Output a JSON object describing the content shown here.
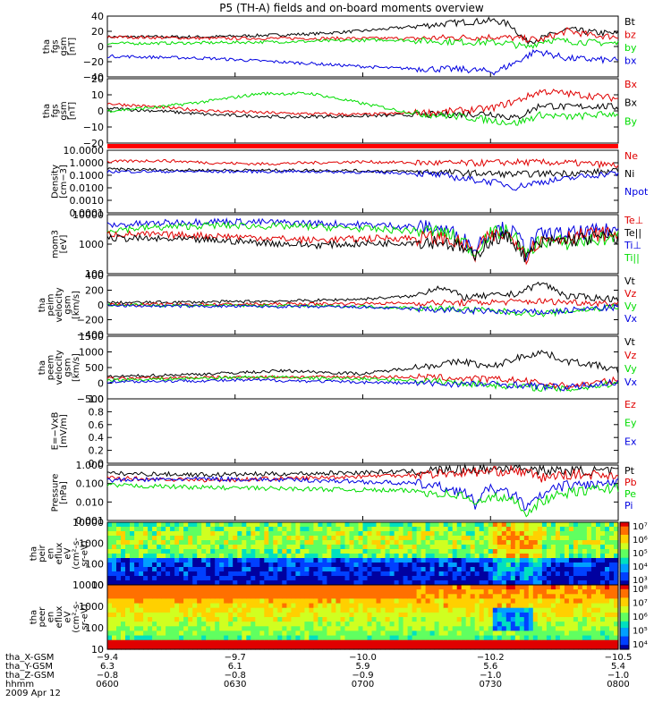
{
  "title": "P5 (TH-A) fields and on-board moments overview",
  "colors": {
    "black": "#000000",
    "red": "#e00000",
    "green": "#00dd00",
    "blue": "#0000e0",
    "flag": "#ff0000"
  },
  "chart_data": [
    {
      "type": "line",
      "ylabel": [
        "tha",
        "fgs",
        "gsm",
        "[nT]"
      ],
      "yticks": [
        "40",
        "20",
        "0",
        "−20",
        "−40"
      ],
      "ylim": [
        -40,
        42
      ],
      "legend": [
        {
          "label": "Bt",
          "color": "#000000"
        },
        {
          "label": "bz",
          "color": "#e00000"
        },
        {
          "label": "by",
          "color": "#00dd00"
        },
        {
          "label": "bx",
          "color": "#0000e0"
        }
      ],
      "series": [
        {
          "color": "#000000",
          "x": [
            0,
            0.2,
            0.4,
            0.5,
            0.6,
            0.7,
            0.76,
            0.79,
            0.82,
            0.85,
            0.9,
            0.95,
            1
          ],
          "y": [
            14,
            14,
            18,
            22,
            28,
            34,
            36,
            30,
            8,
            12,
            24,
            20,
            18
          ]
        },
        {
          "color": "#e00000",
          "x": [
            0,
            0.2,
            0.4,
            0.6,
            0.76,
            0.8,
            0.85,
            0.9,
            0.95,
            1
          ],
          "y": [
            14,
            12,
            12,
            12,
            14,
            12,
            10,
            22,
            16,
            14
          ]
        },
        {
          "color": "#00dd00",
          "x": [
            0,
            0.2,
            0.4,
            0.55,
            0.7,
            0.78,
            0.82,
            0.86,
            0.9,
            1
          ],
          "y": [
            5,
            6,
            8,
            10,
            7,
            6,
            0,
            10,
            8,
            5
          ]
        },
        {
          "color": "#0000e0",
          "x": [
            0,
            0.2,
            0.4,
            0.55,
            0.7,
            0.76,
            0.8,
            0.84,
            0.9,
            1
          ],
          "y": [
            -12,
            -15,
            -22,
            -28,
            -30,
            -33,
            -20,
            -5,
            -15,
            -18
          ]
        }
      ]
    },
    {
      "type": "line",
      "ylabel": [
        "tha",
        "fgs",
        "gsm",
        "[nT]"
      ],
      "yticks": [
        "20",
        "10",
        "0",
        "−10",
        "−20"
      ],
      "ylim": [
        -26,
        26
      ],
      "legend": [
        {
          "label": "Bx",
          "color": "#e00000"
        },
        {
          "label": "Bx",
          "color": "#000000"
        },
        {
          "label": "By",
          "color": "#00dd00"
        }
      ],
      "series": [
        {
          "color": "#000000",
          "x": [
            0,
            0.1,
            0.2,
            0.35,
            0.5,
            0.65,
            0.75,
            0.8,
            0.85,
            0.9,
            0.95,
            1
          ],
          "y": [
            2,
            0,
            -3,
            -5,
            -4,
            -3,
            -2,
            -6,
            5,
            3,
            4,
            3
          ]
        },
        {
          "color": "#e00000",
          "x": [
            0,
            0.1,
            0.2,
            0.35,
            0.5,
            0.65,
            0.75,
            0.8,
            0.85,
            0.9,
            0.95,
            1
          ],
          "y": [
            6,
            3,
            0,
            -2,
            -3,
            -1,
            2,
            8,
            16,
            14,
            12,
            10
          ]
        },
        {
          "color": "#00dd00",
          "x": [
            0,
            0.1,
            0.2,
            0.3,
            0.4,
            0.5,
            0.6,
            0.7,
            0.8,
            0.85,
            0.9,
            1
          ],
          "y": [
            0,
            3,
            8,
            14,
            14,
            6,
            -2,
            -5,
            -10,
            -3,
            -5,
            -2
          ]
        }
      ]
    },
    {
      "type": "line",
      "scale": "log",
      "ylabel": [
        "Density",
        "[cm−3]"
      ],
      "yticks": [
        "10.0000",
        "1.0000",
        "0.1000",
        "0.0100",
        "0.0010",
        "0.0001"
      ],
      "ylim": [
        0.0001,
        10
      ],
      "legend": [
        {
          "label": "Ne",
          "color": "#e00000"
        },
        {
          "label": "Ni",
          "color": "#000000"
        },
        {
          "label": "Npot",
          "color": "#0000e0"
        }
      ],
      "series": [
        {
          "color": "#e00000",
          "x": [
            0,
            0.1,
            0.2,
            0.3,
            0.4,
            0.5,
            0.6,
            0.7,
            0.8,
            0.9,
            1
          ],
          "y": [
            1.2,
            1.5,
            1.0,
            0.8,
            1.0,
            1.2,
            1.0,
            0.9,
            1.1,
            1.0,
            0.6
          ]
        },
        {
          "color": "#000000",
          "x": [
            0,
            0.2,
            0.4,
            0.6,
            0.7,
            0.8,
            0.9,
            1
          ],
          "y": [
            0.3,
            0.25,
            0.25,
            0.2,
            0.15,
            0.12,
            0.15,
            0.2
          ]
        },
        {
          "color": "#0000e0",
          "x": [
            0,
            0.2,
            0.4,
            0.6,
            0.7,
            0.8,
            0.9,
            1
          ],
          "y": [
            0.2,
            0.2,
            0.2,
            0.15,
            0.05,
            0.01,
            0.05,
            0.15
          ]
        }
      ]
    },
    {
      "type": "line",
      "scale": "log",
      "ylabel": [
        "mom3",
        "[eV]"
      ],
      "yticks": [
        "10000",
        "1000",
        "100"
      ],
      "ylim": [
        100,
        12000
      ],
      "legend": [
        {
          "label": "Te⊥",
          "color": "#e00000"
        },
        {
          "label": "Te||",
          "color": "#000000"
        },
        {
          "label": "Ti⊥",
          "color": "#0000e0"
        },
        {
          "label": "Ti||",
          "color": "#00dd00"
        }
      ],
      "series": [
        {
          "color": "#0000e0",
          "x": [
            0,
            0.2,
            0.4,
            0.55,
            0.65,
            0.7,
            0.72,
            0.75,
            0.78,
            0.82,
            0.85,
            0.9,
            0.95,
            1
          ],
          "y": [
            5000,
            7000,
            6000,
            5000,
            4000,
            1500,
            600,
            3000,
            4000,
            500,
            2500,
            2500,
            3000,
            3500
          ]
        },
        {
          "color": "#00dd00",
          "x": [
            0,
            0.2,
            0.4,
            0.55,
            0.65,
            0.7,
            0.72,
            0.75,
            0.78,
            0.82,
            0.85,
            0.9,
            0.95,
            1
          ],
          "y": [
            3500,
            5000,
            4500,
            3500,
            3000,
            1200,
            400,
            2500,
            3000,
            300,
            1500,
            1200,
            1500,
            2000
          ]
        },
        {
          "color": "#e00000",
          "x": [
            0,
            0.2,
            0.4,
            0.55,
            0.65,
            0.7,
            0.72,
            0.75,
            0.78,
            0.82,
            0.85,
            0.9,
            0.95,
            1
          ],
          "y": [
            2500,
            2200,
            1500,
            1800,
            1800,
            1000,
            400,
            2000,
            2500,
            400,
            1500,
            2000,
            2500,
            2500
          ]
        },
        {
          "color": "#000000",
          "x": [
            0,
            0.2,
            0.4,
            0.55,
            0.65,
            0.7,
            0.72,
            0.75,
            0.78,
            0.82,
            0.85,
            0.9,
            0.95,
            1
          ],
          "y": [
            1800,
            1500,
            1000,
            1200,
            1400,
            700,
            300,
            1500,
            2000,
            300,
            1200,
            1500,
            1800,
            2000
          ]
        }
      ]
    },
    {
      "type": "line",
      "ylabel": [
        "tha",
        "peim",
        "velocity",
        "gsm",
        "[km/s]"
      ],
      "yticks": [
        "400",
        "200",
        "0",
        "−200",
        "−400"
      ],
      "ylim": [
        -400,
        400
      ],
      "legend": [
        {
          "label": "Vt",
          "color": "#000000"
        },
        {
          "label": "Vz",
          "color": "#e00000"
        },
        {
          "label": "Vy",
          "color": "#00dd00"
        },
        {
          "label": "Vx",
          "color": "#0000e0"
        }
      ],
      "series": [
        {
          "color": "#000000",
          "x": [
            0,
            0.2,
            0.4,
            0.5,
            0.6,
            0.65,
            0.7,
            0.8,
            0.85,
            0.9,
            1
          ],
          "y": [
            30,
            40,
            60,
            80,
            120,
            250,
            100,
            150,
            300,
            120,
            80
          ]
        },
        {
          "color": "#e00000",
          "x": [
            0,
            0.3,
            0.5,
            0.7,
            0.85,
            1
          ],
          "y": [
            5,
            10,
            20,
            30,
            50,
            20
          ]
        },
        {
          "color": "#00dd00",
          "x": [
            0,
            0.3,
            0.5,
            0.7,
            0.85,
            1
          ],
          "y": [
            0,
            -10,
            -20,
            -60,
            -120,
            -20
          ]
        },
        {
          "color": "#0000e0",
          "x": [
            0,
            0.3,
            0.5,
            0.7,
            0.85,
            1
          ],
          "y": [
            -10,
            -20,
            -30,
            -80,
            -100,
            -30
          ]
        }
      ]
    },
    {
      "type": "line",
      "ylabel": [
        "tha",
        "peem",
        "velocity",
        "gsm",
        "[km/s]"
      ],
      "yticks": [
        "1500",
        "1000",
        "500",
        "0",
        "−500"
      ],
      "ylim": [
        -500,
        1500
      ],
      "legend": [
        {
          "label": "Vt",
          "color": "#000000"
        },
        {
          "label": "Vz",
          "color": "#e00000"
        },
        {
          "label": "Vy",
          "color": "#00dd00"
        },
        {
          "label": "Vx",
          "color": "#0000e0"
        }
      ],
      "series": [
        {
          "color": "#000000",
          "x": [
            0,
            0.2,
            0.35,
            0.5,
            0.6,
            0.7,
            0.75,
            0.8,
            0.85,
            0.9,
            0.95,
            1
          ],
          "y": [
            200,
            300,
            400,
            300,
            500,
            700,
            500,
            800,
            1000,
            700,
            600,
            400
          ]
        },
        {
          "color": "#e00000",
          "x": [
            0,
            0.3,
            0.6,
            0.8,
            0.9,
            1
          ],
          "y": [
            150,
            200,
            200,
            100,
            -100,
            100
          ]
        },
        {
          "color": "#00dd00",
          "x": [
            0,
            0.3,
            0.6,
            0.8,
            0.9,
            1
          ],
          "y": [
            100,
            200,
            100,
            -100,
            -200,
            0
          ]
        },
        {
          "color": "#0000e0",
          "x": [
            0,
            0.3,
            0.6,
            0.8,
            0.9,
            1
          ],
          "y": [
            50,
            100,
            0,
            -50,
            -150,
            50
          ]
        }
      ]
    },
    {
      "type": "line",
      "ylabel": [
        "E=−VxB",
        "[mV/m]"
      ],
      "yticks": [
        "1.0",
        "0.8",
        "0.6",
        "0.4",
        "0.2",
        "0.0"
      ],
      "ylim": [
        0,
        1
      ],
      "legend": [
        {
          "label": "Ez",
          "color": "#e00000"
        },
        {
          "label": "Ey",
          "color": "#00dd00"
        },
        {
          "label": "Ex",
          "color": "#0000e0"
        }
      ],
      "series": []
    },
    {
      "type": "line",
      "scale": "log",
      "ylabel": [
        "Pressure",
        "[nPa]"
      ],
      "yticks": [
        "1.000",
        "0.100",
        "0.010",
        "0.001"
      ],
      "ylim": [
        0.001,
        1
      ],
      "legend": [
        {
          "label": "Pt",
          "color": "#000000"
        },
        {
          "label": "Pb",
          "color": "#e00000"
        },
        {
          "label": "Pe",
          "color": "#00dd00"
        },
        {
          "label": "Pi",
          "color": "#0000e0"
        }
      ],
      "series": [
        {
          "color": "#000000",
          "x": [
            0,
            0.2,
            0.4,
            0.6,
            0.7,
            0.75,
            0.8,
            0.85,
            0.9,
            1
          ],
          "y": [
            0.35,
            0.3,
            0.35,
            0.45,
            0.6,
            0.6,
            0.8,
            0.5,
            0.5,
            0.45
          ]
        },
        {
          "color": "#e00000",
          "x": [
            0,
            0.2,
            0.4,
            0.6,
            0.7,
            0.8,
            0.85,
            0.9,
            1
          ],
          "y": [
            0.2,
            0.15,
            0.2,
            0.3,
            0.4,
            0.5,
            0.2,
            0.3,
            0.3
          ]
        },
        {
          "color": "#0000e0",
          "x": [
            0,
            0.2,
            0.4,
            0.6,
            0.7,
            0.72,
            0.75,
            0.8,
            0.82,
            0.85,
            0.9,
            1
          ],
          "y": [
            0.15,
            0.18,
            0.15,
            0.1,
            0.03,
            0.006,
            0.05,
            0.02,
            0.003,
            0.02,
            0.08,
            0.1
          ]
        },
        {
          "color": "#00dd00",
          "x": [
            0,
            0.2,
            0.4,
            0.6,
            0.7,
            0.72,
            0.75,
            0.8,
            0.82,
            0.85,
            0.9,
            1
          ],
          "y": [
            0.08,
            0.06,
            0.05,
            0.04,
            0.02,
            0.005,
            0.02,
            0.01,
            0.002,
            0.01,
            0.03,
            0.06
          ]
        }
      ]
    },
    {
      "type": "heatmap",
      "ylabel": [
        "tha",
        "peir",
        "en",
        "eflux",
        "eV",
        "(cm²-s-",
        "sr-eV)"
      ],
      "yticks": [
        "10000",
        "1000",
        "100",
        "10"
      ],
      "colorbar": [
        "10⁷",
        "10⁶",
        "10⁵",
        "10⁴",
        "10³"
      ]
    },
    {
      "type": "heatmap",
      "ylabel": [
        "tha",
        "peer",
        "en",
        "eflux",
        "eV",
        "(cm²-s-",
        "sr-eV)"
      ],
      "yticks": [
        "10000",
        "1000",
        "100",
        "10"
      ],
      "colorbar": [
        "10⁸",
        "10⁷",
        "10⁶",
        "10⁵",
        "10⁴"
      ]
    }
  ],
  "xaxis": {
    "row_labels": [
      "tha_X-GSM",
      "tha_Y-GSM",
      "tha_Z-GSM",
      "hhmm",
      "2009 Apr 12"
    ],
    "columns": [
      {
        "values": [
          "−9.4",
          "6.3",
          "−0.8",
          "0600"
        ]
      },
      {
        "values": [
          "−9.7",
          "6.1",
          "−0.8",
          "0630"
        ]
      },
      {
        "values": [
          "−10.0",
          "5.9",
          "−0.9",
          "0700"
        ]
      },
      {
        "values": [
          "−10.2",
          "5.6",
          "−1.0",
          "0730"
        ]
      },
      {
        "values": [
          "−10.5",
          "5.4",
          "−1.0",
          "0800"
        ]
      }
    ]
  }
}
